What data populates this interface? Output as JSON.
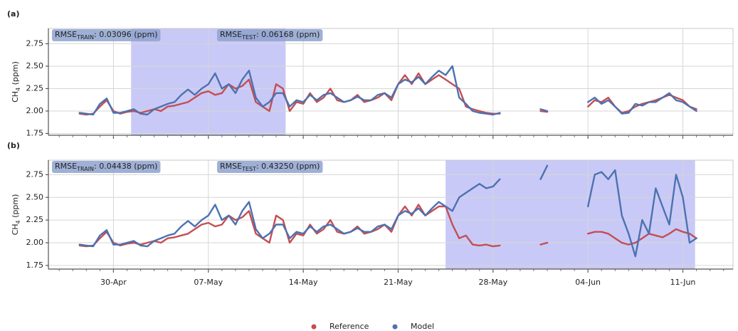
{
  "chart_data": [
    {
      "type": "line",
      "label": "(a)",
      "ylabel": {
        "base": "CH",
        "sub": "4",
        "rest": " (ppm)"
      },
      "annotations": [
        {
          "prefix": "RMSE",
          "sub": "TRAIN",
          "text": ": 0.03096 (ppm)"
        },
        {
          "prefix": "RMSE",
          "sub": "TEST",
          "text": ": 0.06168 (ppm)"
        }
      ],
      "shade": [
        121.3,
        132.7
      ],
      "shade_color": "#c9c9f7",
      "xlim": [
        115.2,
        165.7
      ],
      "xticks": [
        120,
        127,
        134,
        141,
        148,
        155,
        162
      ],
      "ylim": [
        1.73,
        2.92
      ],
      "yticks": [
        1.75,
        {
          "value": 2,
          "label": "2.00"
        },
        2.25,
        {
          "value": 2.5,
          "label": "2.50"
        },
        2.75
      ],
      "grid": true,
      "x": [
        117.5,
        118,
        118.5,
        119,
        119.5,
        120,
        120.5,
        121,
        121.5,
        122,
        122.5,
        123,
        123.5,
        124,
        124.5,
        125,
        125.5,
        126,
        126.5,
        127,
        127.5,
        128,
        128.5,
        129,
        129.5,
        130,
        130.5,
        131,
        131.5,
        132,
        132.5,
        133,
        133.5,
        134,
        134.5,
        135,
        135.5,
        136,
        136.5,
        137,
        137.5,
        138,
        138.5,
        139,
        139.5,
        140,
        140.5,
        141,
        141.5,
        142,
        142.5,
        143,
        143.5,
        144,
        144.5,
        145,
        145.5,
        146,
        146.5,
        147,
        147.5,
        148,
        148.5,
        150,
        151.5,
        152,
        153.5,
        155,
        155.5,
        156,
        156.5,
        157,
        157.5,
        158,
        158.5,
        159,
        159.5,
        160,
        160.5,
        161,
        161.5,
        162,
        162.5,
        163
      ],
      "series": [
        {
          "name": "Reference",
          "color": "#c44e52",
          "values": [
            1.97,
            1.96,
            1.97,
            2.05,
            2.12,
            2.0,
            1.97,
            1.99,
            2.0,
            1.98,
            2.0,
            2.02,
            2.0,
            2.05,
            2.06,
            2.08,
            2.1,
            2.15,
            2.2,
            2.22,
            2.18,
            2.2,
            2.3,
            2.25,
            2.28,
            2.35,
            2.1,
            2.05,
            2.0,
            2.3,
            2.25,
            2.0,
            2.1,
            2.08,
            2.2,
            2.1,
            2.15,
            2.25,
            2.12,
            2.1,
            2.12,
            2.18,
            2.1,
            2.12,
            2.15,
            2.2,
            2.12,
            2.3,
            2.4,
            2.3,
            2.42,
            2.3,
            2.35,
            2.4,
            2.35,
            2.3,
            2.25,
            2.05,
            2.02,
            2.0,
            1.98,
            1.97,
            1.97,
            null,
            2.0,
            1.99,
            null,
            2.05,
            2.12,
            2.1,
            2.15,
            2.05,
            1.98,
            2.0,
            2.05,
            2.08,
            2.1,
            2.12,
            2.15,
            2.18,
            2.15,
            2.12,
            2.05,
            2.02
          ]
        },
        {
          "name": "Model",
          "color": "#4c72b0",
          "values": [
            1.98,
            1.97,
            1.96,
            2.08,
            2.14,
            1.98,
            1.98,
            2.0,
            2.02,
            1.97,
            1.96,
            2.02,
            2.05,
            2.08,
            2.1,
            2.18,
            2.24,
            2.18,
            2.25,
            2.3,
            2.42,
            2.25,
            2.3,
            2.2,
            2.35,
            2.45,
            2.15,
            2.05,
            2.1,
            2.2,
            2.2,
            2.05,
            2.12,
            2.1,
            2.18,
            2.12,
            2.18,
            2.2,
            2.15,
            2.1,
            2.12,
            2.16,
            2.12,
            2.12,
            2.18,
            2.2,
            2.15,
            2.3,
            2.35,
            2.32,
            2.38,
            2.3,
            2.38,
            2.45,
            2.4,
            2.5,
            2.15,
            2.08,
            2.0,
            1.98,
            1.97,
            1.96,
            1.98,
            null,
            2.02,
            2.0,
            null,
            2.1,
            2.15,
            2.08,
            2.12,
            2.05,
            1.97,
            1.98,
            2.08,
            2.06,
            2.1,
            2.1,
            2.15,
            2.2,
            2.12,
            2.1,
            2.05,
            2.0
          ]
        }
      ]
    },
    {
      "type": "line",
      "label": "(b)",
      "ylabel": {
        "base": "CH",
        "sub": "4",
        "rest": " (ppm)"
      },
      "annotations": [
        {
          "prefix": "RMSE",
          "sub": "TRAIN",
          "text": ": 0.04438 (ppm)"
        },
        {
          "prefix": "RMSE",
          "sub": "TEST",
          "text": ": 0.43250 (ppm)"
        }
      ],
      "shade": [
        144.5,
        162.9
      ],
      "shade_color": "#c9c9f7",
      "xlim": [
        115.2,
        165.7
      ],
      "xticks": [
        {
          "value": 120,
          "label": "30-Apr"
        },
        {
          "value": 127,
          "label": "07-May"
        },
        {
          "value": 134,
          "label": "14-May"
        },
        {
          "value": 141,
          "label": "21-May"
        },
        {
          "value": 148,
          "label": "28-May"
        },
        {
          "value": 155,
          "label": "04-Jun"
        },
        {
          "value": 162,
          "label": "11-Jun"
        }
      ],
      "ylim": [
        1.71,
        2.91
      ],
      "yticks": [
        1.75,
        {
          "value": 2,
          "label": "2.00"
        },
        2.25,
        {
          "value": 2.5,
          "label": "2.50"
        },
        2.75
      ],
      "grid": true,
      "x": [
        117.5,
        118,
        118.5,
        119,
        119.5,
        120,
        120.5,
        121,
        121.5,
        122,
        122.5,
        123,
        123.5,
        124,
        124.5,
        125,
        125.5,
        126,
        126.5,
        127,
        127.5,
        128,
        128.5,
        129,
        129.5,
        130,
        130.5,
        131,
        131.5,
        132,
        132.5,
        133,
        133.5,
        134,
        134.5,
        135,
        135.5,
        136,
        136.5,
        137,
        137.5,
        138,
        138.5,
        139,
        139.5,
        140,
        140.5,
        141,
        141.5,
        142,
        142.5,
        143,
        143.5,
        144,
        144.5,
        145,
        145.5,
        146,
        146.5,
        147,
        147.5,
        148,
        148.5,
        150,
        151.5,
        152,
        153.5,
        155,
        155.5,
        156,
        156.5,
        157,
        157.5,
        158,
        158.5,
        159,
        159.5,
        160,
        160.5,
        161,
        161.5,
        162,
        162.5,
        163
      ],
      "series": [
        {
          "color": "#c44e52",
          "values": [
            1.97,
            1.96,
            1.97,
            2.05,
            2.12,
            2.0,
            1.97,
            1.99,
            2.0,
            1.98,
            2.0,
            2.02,
            2.0,
            2.05,
            2.06,
            2.08,
            2.1,
            2.15,
            2.2,
            2.22,
            2.18,
            2.2,
            2.3,
            2.25,
            2.28,
            2.35,
            2.1,
            2.05,
            2.0,
            2.3,
            2.25,
            2.0,
            2.1,
            2.08,
            2.2,
            2.1,
            2.15,
            2.25,
            2.12,
            2.1,
            2.12,
            2.18,
            2.1,
            2.12,
            2.15,
            2.2,
            2.12,
            2.3,
            2.4,
            2.3,
            2.42,
            2.3,
            2.35,
            2.4,
            2.4,
            2.2,
            2.05,
            2.08,
            1.98,
            1.97,
            1.98,
            1.96,
            1.97,
            null,
            1.98,
            2.0,
            null,
            2.1,
            2.12,
            2.12,
            2.1,
            2.05,
            2.0,
            1.98,
            2.0,
            2.05,
            2.1,
            2.08,
            2.06,
            2.1,
            2.15,
            2.12,
            2.1,
            2.05
          ]
        },
        {
          "color": "#4c72b0",
          "values": [
            1.98,
            1.97,
            1.96,
            2.08,
            2.14,
            1.98,
            1.98,
            2.0,
            2.02,
            1.97,
            1.96,
            2.02,
            2.05,
            2.08,
            2.1,
            2.18,
            2.24,
            2.18,
            2.25,
            2.3,
            2.42,
            2.25,
            2.3,
            2.2,
            2.35,
            2.45,
            2.15,
            2.05,
            2.1,
            2.2,
            2.2,
            2.05,
            2.12,
            2.1,
            2.18,
            2.12,
            2.18,
            2.2,
            2.15,
            2.1,
            2.12,
            2.16,
            2.12,
            2.12,
            2.18,
            2.2,
            2.15,
            2.3,
            2.35,
            2.32,
            2.38,
            2.3,
            2.38,
            2.45,
            2.4,
            2.35,
            2.5,
            2.55,
            2.6,
            2.65,
            2.6,
            2.62,
            2.7,
            null,
            2.7,
            2.85,
            null,
            2.4,
            2.75,
            2.78,
            2.7,
            2.8,
            2.3,
            2.1,
            1.85,
            2.25,
            2.1,
            2.6,
            2.4,
            2.2,
            2.75,
            2.5,
            2.0,
            2.05
          ]
        }
      ]
    }
  ]
}
